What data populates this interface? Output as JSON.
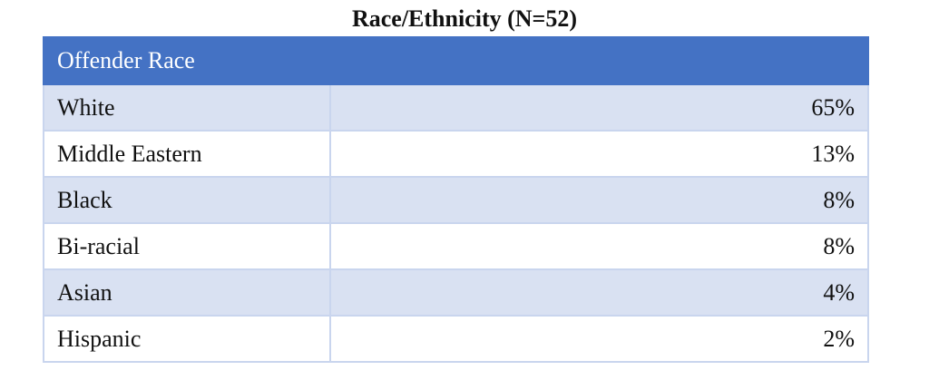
{
  "title": "Race/Ethnicity (N=52)",
  "table": {
    "header": "Offender Race",
    "rows": [
      [
        "White",
        "65%"
      ],
      [
        "Middle Eastern",
        "13%"
      ],
      [
        "Black",
        "8%"
      ],
      [
        "Bi-racial",
        "8%"
      ],
      [
        "Asian",
        "4%"
      ],
      [
        "Hispanic",
        "2%"
      ]
    ]
  }
}
